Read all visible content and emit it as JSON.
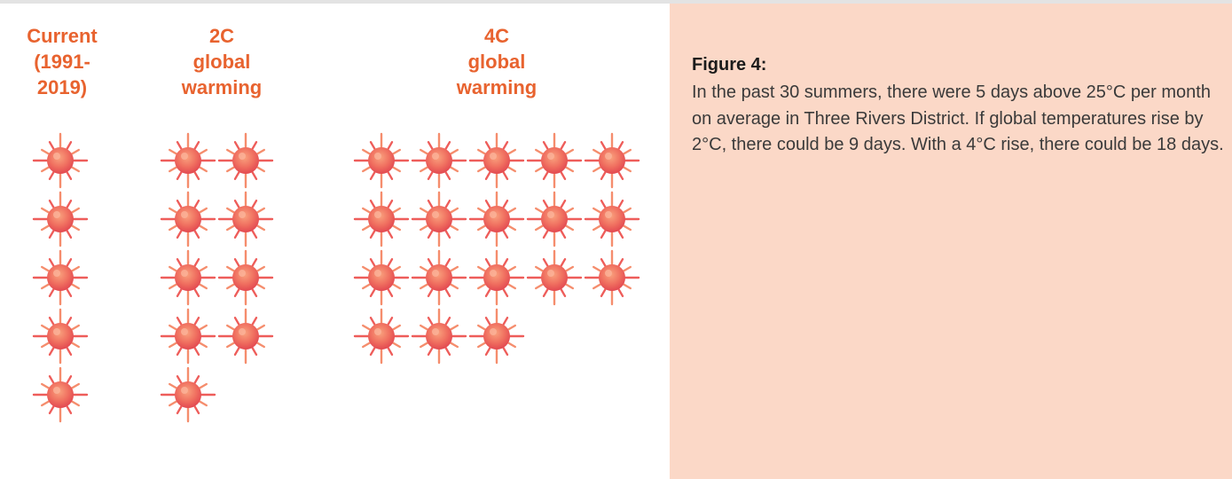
{
  "chart_data": {
    "type": "pictogram",
    "unit": "days above 25°C per month",
    "icon": "sun-icon",
    "colors": {
      "title": "#e8632f",
      "sun_inner": "#f58a63",
      "sun_outer": "#e84a52",
      "panel": "#fbd8c7"
    },
    "categories": [
      "Current\n(1991-\n2019)",
      "2C\nglobal\nwarming",
      "4C\nglobal\nwarming"
    ],
    "values": [
      5,
      9,
      18
    ]
  },
  "caption": {
    "heading": "Figure 4:",
    "body": "In the past 30 summers, there were 5 days above 25°C per month on average in Three Rivers District. If global temperatures rise by 2°C, there could be 9 days. With a 4°C rise, there could be 18 days."
  }
}
